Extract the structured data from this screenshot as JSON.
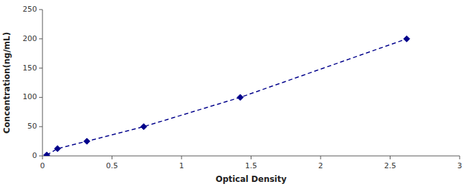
{
  "chart_data": {
    "type": "line",
    "x": [
      0.031,
      0.108,
      0.319,
      0.728,
      1.422,
      2.619
    ],
    "values": [
      1.563,
      12.5,
      25,
      50,
      100,
      200
    ],
    "color": "#00008B",
    "marker": "diamond",
    "line_style": "dashed",
    "xlabel": "Optical Density",
    "ylabel": "Concentration(ng/mL)",
    "xlim": [
      0,
      3
    ],
    "ylim": [
      0,
      250
    ],
    "xticks": [
      0,
      0.5,
      1,
      1.5,
      2,
      2.5,
      3
    ],
    "yticks": [
      0,
      50,
      100,
      150,
      200,
      250
    ],
    "grid": false
  }
}
